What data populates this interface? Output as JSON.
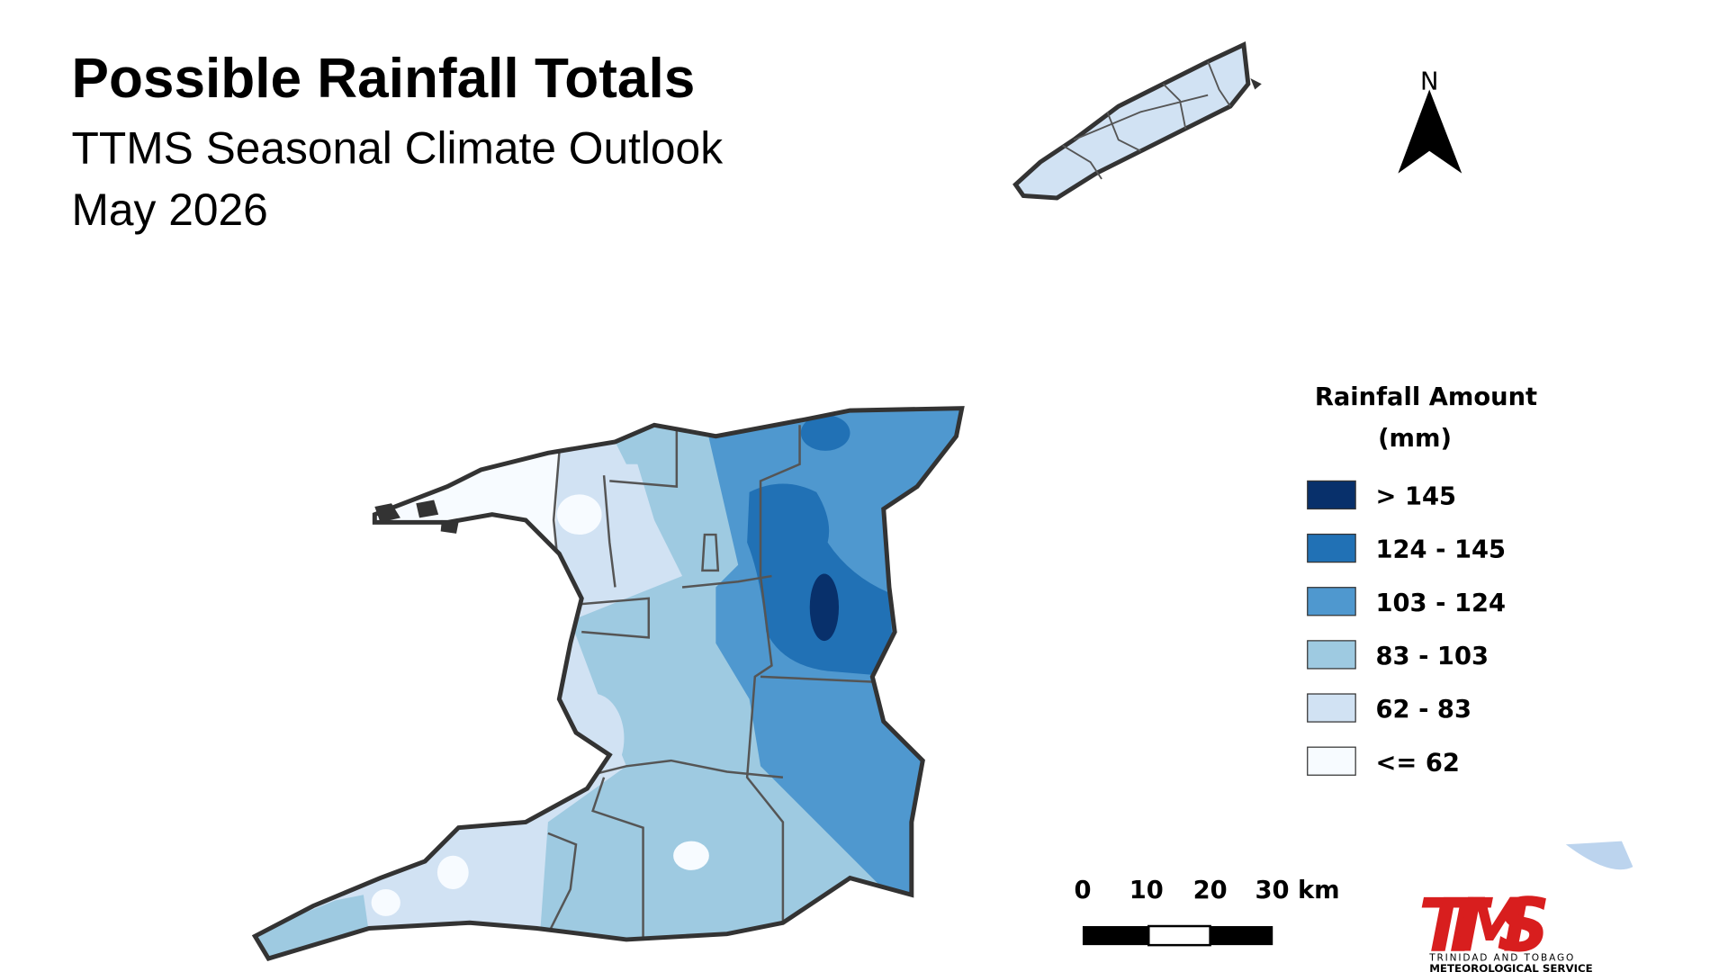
{
  "header": {
    "title": "Possible Rainfall Totals",
    "subtitle": "TTMS Seasonal Climate Outlook",
    "period": "May 2026"
  },
  "north_arrow": {
    "label": "N"
  },
  "legend": {
    "title": [
      "Rainfall Amount",
      "(mm)"
    ],
    "items": [
      {
        "label": "> 145",
        "color": "#08306b"
      },
      {
        "label": "124 - 145",
        "color": "#2171b5"
      },
      {
        "label": "103 - 124",
        "color": "#4f98cf"
      },
      {
        "label": "83 - 103",
        "color": "#9ecae1"
      },
      {
        "label": "62 - 83",
        "color": "#d1e2f3"
      },
      {
        "label": "<= 62",
        "color": "#f7fbff"
      }
    ]
  },
  "scale_bar": {
    "labels": [
      "0",
      "10",
      "20",
      "30 km"
    ]
  },
  "logo": {
    "name": "TTMS",
    "line1": "TRINIDAD AND TOBAGO",
    "line2": "METEOROLOGICAL SERVICE"
  }
}
